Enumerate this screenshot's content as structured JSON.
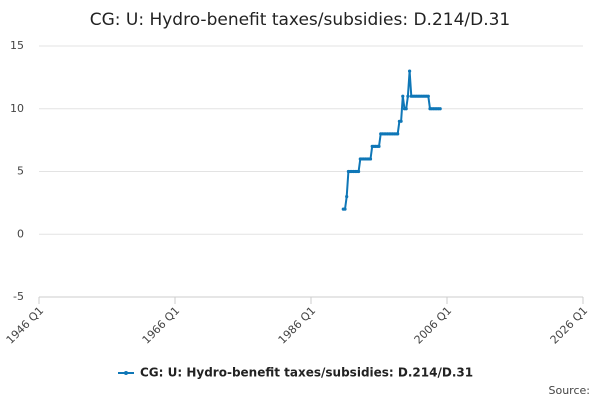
{
  "chart_data": {
    "type": "line",
    "title": "CG: U: Hydro-benefit taxes/subsidies: D.214/D.31",
    "source": "Source:",
    "x": [
      "1990 Q4",
      "1991 Q1",
      "1991 Q2",
      "1991 Q3",
      "1991 Q4",
      "1992 Q1",
      "1992 Q2",
      "1992 Q3",
      "1992 Q4",
      "1993 Q1",
      "1993 Q2",
      "1993 Q3",
      "1993 Q4",
      "1994 Q1",
      "1994 Q2",
      "1994 Q3",
      "1994 Q4",
      "1995 Q1",
      "1995 Q2",
      "1995 Q3",
      "1995 Q4",
      "1996 Q1",
      "1996 Q2",
      "1996 Q3",
      "1996 Q4",
      "1997 Q1",
      "1997 Q2",
      "1997 Q3",
      "1997 Q4",
      "1998 Q1",
      "1998 Q2",
      "1998 Q3",
      "1998 Q4",
      "1999 Q1",
      "1999 Q2",
      "1999 Q3",
      "1999 Q4",
      "2000 Q1",
      "2000 Q2",
      "2000 Q3",
      "2000 Q4",
      "2001 Q1",
      "2001 Q2",
      "2001 Q3",
      "2001 Q4",
      "2002 Q1",
      "2002 Q2",
      "2002 Q3",
      "2002 Q4",
      "2003 Q1",
      "2003 Q2",
      "2003 Q3",
      "2003 Q4",
      "2004 Q1",
      "2004 Q2",
      "2004 Q3",
      "2004 Q4",
      "2005 Q1"
    ],
    "series": [
      {
        "name": "CG: U: Hydro-benefit taxes/subsidies: D.214/D.31",
        "color": "#0f77b7",
        "values": [
          2,
          2,
          3,
          5,
          5,
          5,
          5,
          5,
          5,
          5,
          6,
          6,
          6,
          6,
          6,
          6,
          6,
          7,
          7,
          7,
          7,
          7,
          8,
          8,
          8,
          8,
          8,
          8,
          8,
          8,
          8,
          8,
          8,
          9,
          9,
          11,
          10,
          10,
          11,
          13,
          11,
          11,
          11,
          11,
          11,
          11,
          11,
          11,
          11,
          11,
          11,
          10,
          10,
          10,
          10,
          10,
          10,
          10
        ]
      }
    ],
    "xlim": [
      "1946 Q1",
      "2026 Q1"
    ],
    "xticks": [
      "1946 Q1",
      "1966 Q1",
      "1986 Q1",
      "2006 Q1",
      "2026 Q1"
    ],
    "ylim": [
      -5,
      15
    ],
    "yticks": [
      -5,
      0,
      5,
      10,
      15
    ],
    "grid": true
  }
}
